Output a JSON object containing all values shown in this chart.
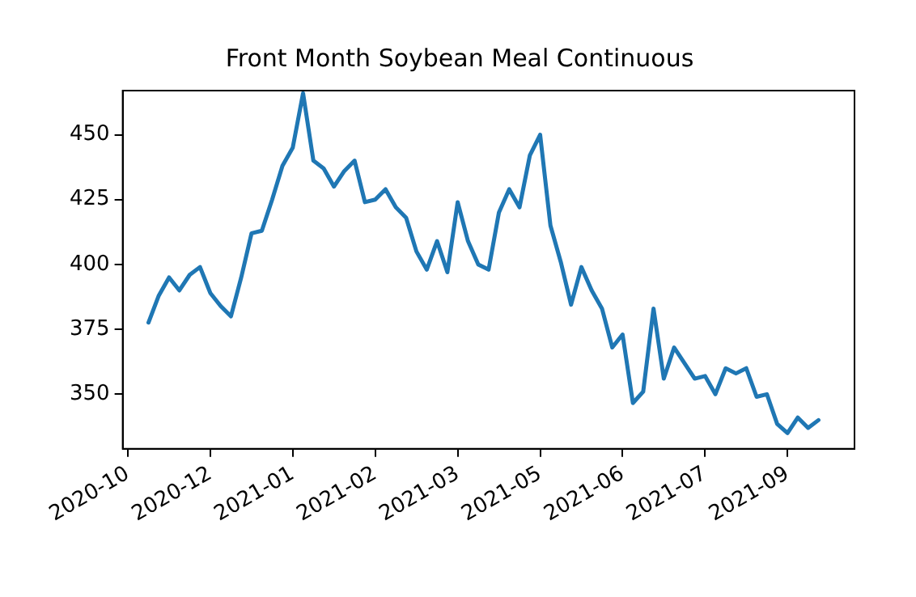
{
  "chart_data": {
    "type": "line",
    "title": "Front Month Soybean Meal Continuous",
    "categories": [
      "2020-10",
      null,
      null,
      null,
      null,
      null,
      null,
      null,
      "2020-12",
      null,
      null,
      null,
      null,
      null,
      null,
      null,
      "2021-01",
      null,
      null,
      null,
      null,
      null,
      null,
      null,
      "2021-02",
      null,
      null,
      null,
      null,
      null,
      null,
      null,
      "2021-03",
      null,
      null,
      null,
      null,
      null,
      null,
      null,
      "2021-05",
      null,
      null,
      null,
      null,
      null,
      null,
      null,
      "2021-06",
      null,
      null,
      null,
      null,
      null,
      null,
      null,
      "2021-07",
      null,
      null,
      null,
      null,
      null,
      null,
      null,
      "2021-09",
      null,
      null,
      null,
      null,
      null,
      null
    ],
    "series": [
      {
        "color": "#1f77b4",
        "values": [
          null,
          null,
          377.6,
          388,
          395,
          390,
          396,
          399,
          389,
          384,
          380,
          395,
          412,
          413,
          425,
          438,
          445,
          466,
          440,
          437,
          430,
          436,
          440,
          424,
          425,
          429,
          422,
          418,
          405,
          398,
          409,
          397,
          424,
          409,
          400,
          398,
          420,
          429,
          422,
          442,
          450,
          415,
          401,
          384.5,
          399,
          390,
          383,
          368,
          373,
          346.6,
          351,
          383,
          356,
          368,
          362,
          356,
          357,
          350,
          360,
          358,
          360,
          349,
          350,
          338.5,
          335,
          341,
          337,
          340,
          null,
          null,
          null
        ]
      }
    ],
    "ylim": [
      329,
      467
    ],
    "yticks": [
      350,
      375,
      400,
      425,
      450
    ],
    "grid": false,
    "legend": false,
    "marker": "none",
    "line_style": "solid"
  }
}
